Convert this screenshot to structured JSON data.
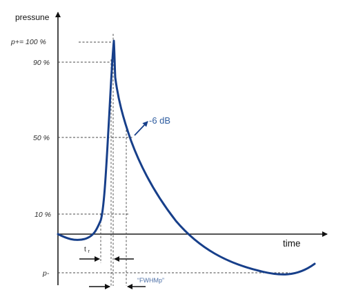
{
  "axes": {
    "y_label": "pressune",
    "x_label": "time"
  },
  "levels": {
    "p_plus": "p+= 100 %",
    "p90": "90 %",
    "p50": "50 %",
    "p10": "10 %",
    "p_minus": "p-"
  },
  "annotations": {
    "db_label": "-6 dB",
    "tr_label": "t",
    "tr_subscript": "r",
    "fwhmp_label": "“FWHMp”"
  },
  "colors": {
    "curve": "#173f8a",
    "axes": "#1a1a1a",
    "guide": "#444444"
  }
}
